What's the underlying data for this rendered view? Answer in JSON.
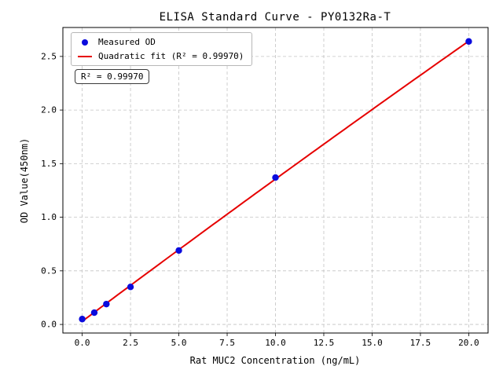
{
  "chart_data": {
    "type": "scatter",
    "title": "ELISA Standard Curve - PY0132Ra-T",
    "xlabel": "Rat MUC2 Concentration (ng/mL)",
    "ylabel": "OD Value(450nm)",
    "xlim": [
      -1,
      21
    ],
    "ylim": [
      -0.08,
      2.77
    ],
    "xticks": [
      0.0,
      2.5,
      5.0,
      7.5,
      10.0,
      12.5,
      15.0,
      17.5,
      20.0
    ],
    "yticks": [
      0.0,
      0.5,
      1.0,
      1.5,
      2.0,
      2.5
    ],
    "grid": true,
    "legend_position": "upper left",
    "annotation": "R² = 0.99970",
    "series": [
      {
        "name": "Measured OD",
        "type": "scatter",
        "color": "#0b0bdd",
        "x": [
          0,
          0.625,
          1.25,
          2.5,
          5,
          10,
          20
        ],
        "y": [
          0.05,
          0.11,
          0.19,
          0.35,
          0.69,
          1.37,
          2.64
        ]
      },
      {
        "name": "Quadratic fit (R² = 0.99970)",
        "type": "line",
        "fit": "quadratic",
        "color": "#e60000",
        "r_squared": 0.9997
      }
    ]
  }
}
